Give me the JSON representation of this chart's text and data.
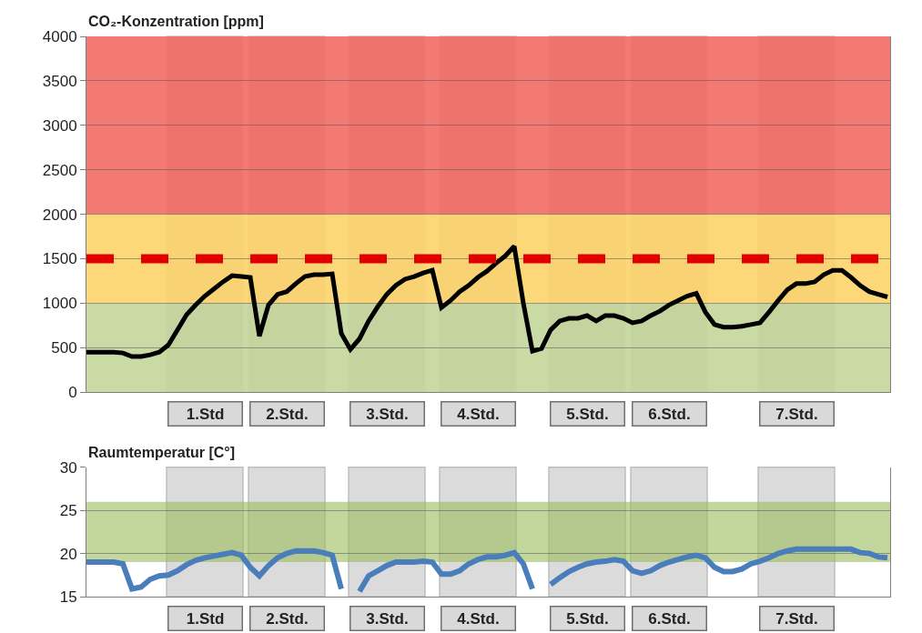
{
  "chart_data": [
    {
      "type": "line",
      "title": "CO₂-Konzentration [ppm]",
      "categories": [
        null,
        null,
        null,
        null,
        null,
        null,
        null,
        null,
        null,
        null,
        null,
        null,
        null,
        "1.Std",
        null,
        null,
        null,
        null,
        null,
        null,
        null,
        null,
        "2.Std.",
        null,
        null,
        null,
        null,
        null,
        null,
        null,
        null,
        null,
        null,
        "3.Std.",
        null,
        null,
        null,
        null,
        null,
        null,
        null,
        null,
        null,
        "4.Std.",
        null,
        null,
        null,
        null,
        null,
        null,
        null,
        null,
        null,
        null,
        null,
        "5.Std.",
        null,
        null,
        null,
        null,
        null,
        null,
        null,
        null,
        "6.Std.",
        null,
        null,
        null,
        null,
        null,
        null,
        null,
        null,
        null,
        null,
        null,
        null,
        null,
        "7.Std.",
        null,
        null,
        null,
        null,
        null,
        null,
        null,
        null,
        null,
        null
      ],
      "ylim": [
        0,
        4000
      ],
      "yticks": [
        0,
        500,
        1000,
        1500,
        2000,
        2500,
        3000,
        3500,
        4000
      ],
      "grid": "y",
      "series": [
        {
          "color": "#000000",
          "values": [
            450,
            450,
            450,
            450,
            440,
            400,
            400,
            420,
            450,
            530,
            700,
            870,
            980,
            1080,
            1160,
            1240,
            1310,
            1300,
            1290,
            630,
            980,
            1100,
            1130,
            1220,
            1300,
            1320,
            1320,
            1330,
            660,
            480,
            600,
            800,
            960,
            1100,
            1200,
            1270,
            1300,
            1340,
            1370,
            950,
            1030,
            1130,
            1200,
            1290,
            1360,
            1450,
            1530,
            1640,
            1000,
            460,
            490,
            700,
            800,
            830,
            830,
            860,
            800,
            860,
            860,
            830,
            780,
            800,
            860,
            910,
            980,
            1030,
            1080,
            1110,
            900,
            760,
            730,
            730,
            740,
            760,
            780,
            900,
            1030,
            1150,
            1220,
            1220,
            1240,
            1320,
            1370,
            1370,
            1290,
            1200,
            1130,
            1100,
            1070
          ]
        }
      ],
      "bands": [
        {
          "axis": "y",
          "from": 0,
          "to": 1000,
          "color": "#c3d69b"
        },
        {
          "axis": "y",
          "from": 1000,
          "to": 2000,
          "color": "#fcd46a"
        },
        {
          "axis": "y",
          "from": 2000,
          "to": 4000,
          "color": "#f26a64"
        }
      ],
      "ref_lines": [
        {
          "axis": "y",
          "value": 1500,
          "color": "#e00000",
          "line_style": "dashed"
        }
      ]
    },
    {
      "type": "line",
      "title": "Raumtemperatur [C°]",
      "categories": [
        null,
        null,
        null,
        null,
        null,
        null,
        null,
        null,
        null,
        null,
        null,
        null,
        null,
        "1.Std",
        null,
        null,
        null,
        null,
        null,
        null,
        null,
        null,
        "2.Std.",
        null,
        null,
        null,
        null,
        null,
        null,
        null,
        null,
        null,
        null,
        "3.Std.",
        null,
        null,
        null,
        null,
        null,
        null,
        null,
        null,
        null,
        "4.Std.",
        null,
        null,
        null,
        null,
        null,
        null,
        null,
        null,
        null,
        null,
        null,
        "5.Std.",
        null,
        null,
        null,
        null,
        null,
        null,
        null,
        null,
        "6.Std.",
        null,
        null,
        null,
        null,
        null,
        null,
        null,
        null,
        null,
        null,
        null,
        null,
        null,
        "7.Std.",
        null,
        null,
        null,
        null,
        null,
        null,
        null,
        null,
        null,
        null
      ],
      "ylim": [
        15,
        30
      ],
      "yticks": [
        15,
        20,
        25,
        30
      ],
      "grid": "y",
      "series": [
        {
          "color": "#4a7ebb",
          "values": [
            19.0,
            19.0,
            19.0,
            19.0,
            18.8,
            15.9,
            16.1,
            17.0,
            17.4,
            17.5,
            18.0,
            18.7,
            19.2,
            19.5,
            19.7,
            19.9,
            20.1,
            19.8,
            18.4,
            17.4,
            18.6,
            19.5,
            20.0,
            20.3,
            20.3,
            20.3,
            20.1,
            19.8,
            15.9,
            null,
            15.6,
            17.4,
            18.0,
            18.6,
            19.0,
            19.0,
            19.0,
            19.1,
            19.0,
            17.6,
            17.6,
            18.0,
            18.8,
            19.3,
            19.6,
            19.6,
            19.8,
            20.1,
            18.8,
            15.9,
            null,
            16.4,
            17.2,
            17.9,
            18.4,
            18.8,
            19.0,
            19.1,
            19.3,
            19.1,
            18.0,
            17.7,
            18.0,
            18.6,
            19.0,
            19.3,
            19.6,
            19.8,
            19.5,
            18.4,
            17.9,
            17.9,
            18.2,
            18.8,
            19.1,
            19.5,
            20.0,
            20.3,
            20.5,
            20.5,
            20.5,
            20.5,
            20.5,
            20.5,
            20.5,
            20.1,
            20.0,
            19.6,
            19.5
          ]
        }
      ],
      "bands": [
        {
          "axis": "y",
          "from": 19,
          "to": 26,
          "color": "#9bbb59"
        }
      ]
    }
  ]
}
